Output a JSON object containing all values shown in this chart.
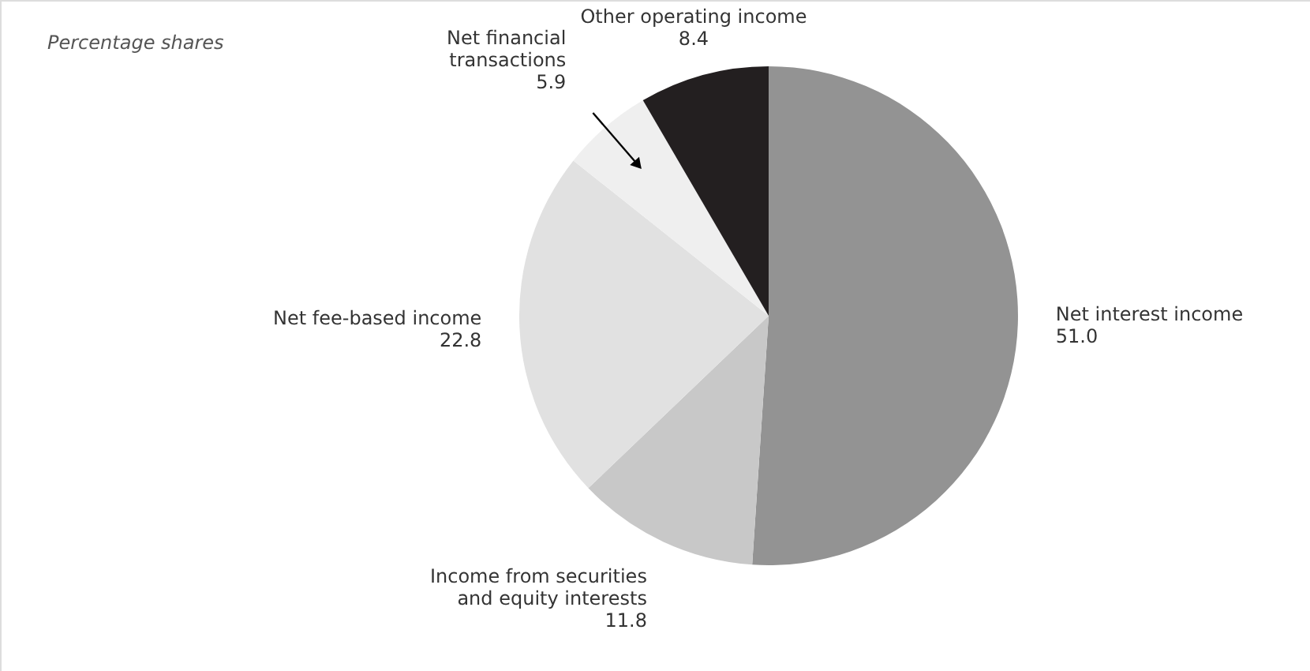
{
  "chart_data": {
    "type": "pie",
    "title": "Percentage shares",
    "categories": [
      "Net interest income",
      "Income from securities and equity interests",
      "Net fee-based income",
      "Net financial transactions",
      "Other operating income"
    ],
    "values": [
      51.0,
      11.8,
      22.8,
      5.9,
      8.4
    ],
    "colors": [
      "#939393",
      "#c8c8c8",
      "#e1e1e1",
      "#efefef",
      "#231f20"
    ],
    "value_labels": [
      "51.0",
      "11.8",
      "22.8",
      "5.9",
      "8.4"
    ],
    "legend": false
  }
}
